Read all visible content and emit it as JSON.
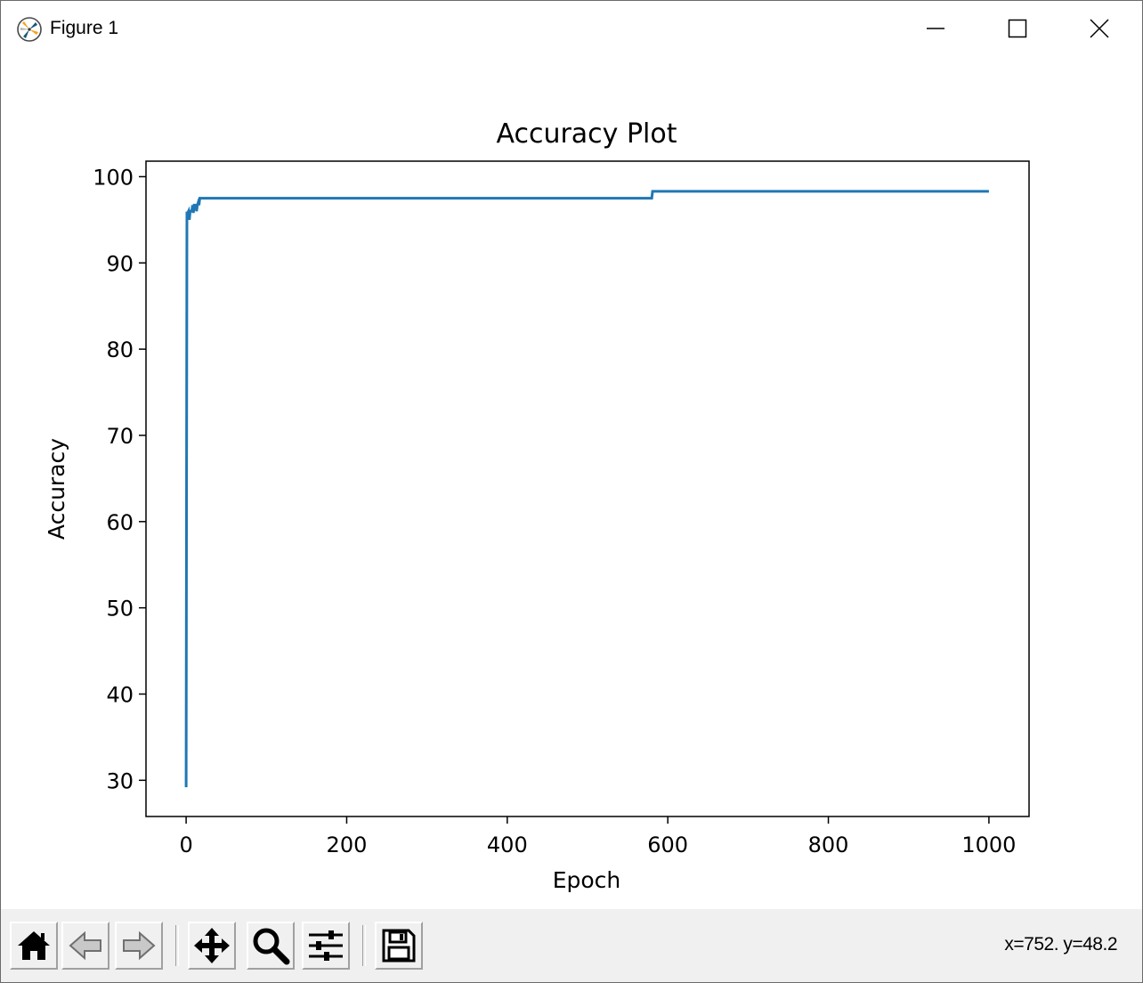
{
  "window": {
    "title": "Figure 1",
    "icon": "matplotlib-icon",
    "controls": {
      "minimize": "minimize-icon",
      "maximize": "maximize-icon",
      "close": "close-icon"
    }
  },
  "toolbar": {
    "buttons": [
      {
        "name": "home-button",
        "icon": "home-icon"
      },
      {
        "name": "back-button",
        "icon": "back-arrow-icon"
      },
      {
        "name": "forward-button",
        "icon": "forward-arrow-icon"
      },
      {
        "name": "pan-button",
        "icon": "move-icon"
      },
      {
        "name": "zoom-button",
        "icon": "magnifier-icon"
      },
      {
        "name": "configure-subplots-button",
        "icon": "sliders-icon"
      },
      {
        "name": "save-button",
        "icon": "floppy-disk-icon"
      }
    ],
    "coordinates": "x=752. y=48.2"
  },
  "chart_data": {
    "type": "line",
    "title": "Accuracy Plot",
    "xlabel": "Epoch",
    "ylabel": "Accuracy",
    "xlim": [
      -50,
      1050
    ],
    "ylim": [
      25.8,
      101.8
    ],
    "xticks": [
      0,
      200,
      400,
      600,
      800,
      1000
    ],
    "yticks": [
      30,
      40,
      50,
      60,
      70,
      80,
      90,
      100
    ],
    "grid": false,
    "line_color": "#1f77b4",
    "series": [
      {
        "x": [
          0,
          1,
          2,
          3,
          4,
          5,
          6,
          7,
          8,
          9,
          10,
          11,
          12,
          13,
          14,
          15,
          16,
          17,
          18,
          19,
          20,
          580,
          581,
          1000
        ],
        "y": [
          29.2,
          95.8,
          95.8,
          96.0,
          95.0,
          96.0,
          96.0,
          96.0,
          96.7,
          95.8,
          96.7,
          96.7,
          96.7,
          96.0,
          96.7,
          97.0,
          96.7,
          97.5,
          97.5,
          97.5,
          97.5,
          97.5,
          98.3,
          98.3
        ]
      }
    ]
  }
}
